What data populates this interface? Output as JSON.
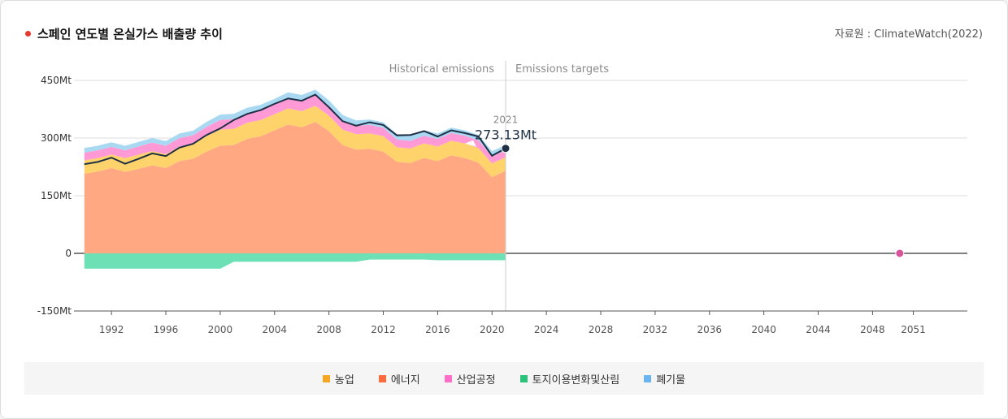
{
  "header": {
    "title": "스페인 연도별 온실가스 배출량 추이",
    "source": "자료원 : ClimateWatch(2022)"
  },
  "chart_data": {
    "type": "area",
    "title": "스페인 연도별 온실가스 배출량 추이",
    "x": [
      1990,
      1991,
      1992,
      1993,
      1994,
      1995,
      1996,
      1997,
      1998,
      1999,
      2000,
      2001,
      2002,
      2003,
      2004,
      2005,
      2006,
      2007,
      2008,
      2009,
      2010,
      2011,
      2012,
      2013,
      2014,
      2015,
      2016,
      2017,
      2018,
      2019,
      2020,
      2021
    ],
    "ylim": [
      -150,
      450
    ],
    "xlim": [
      1989,
      2053
    ],
    "y_ticks": [
      {
        "value": 450,
        "label": "450Mt"
      },
      {
        "value": 300,
        "label": "300Mt"
      },
      {
        "value": 150,
        "label": "150Mt"
      },
      {
        "value": 0,
        "label": "0"
      },
      {
        "value": -150,
        "label": "-150Mt"
      }
    ],
    "x_ticks": [
      1992,
      1996,
      2000,
      2004,
      2008,
      2012,
      2016,
      2020,
      2024,
      2028,
      2032,
      2036,
      2040,
      2044,
      2048,
      2051
    ],
    "series": [
      {
        "name": "에너지",
        "color": "#ffa882",
        "values": [
          207,
          213,
          222,
          212,
          220,
          229,
          222,
          240,
          246,
          265,
          280,
          282,
          298,
          305,
          320,
          335,
          328,
          342,
          318,
          282,
          270,
          272,
          265,
          238,
          235,
          248,
          240,
          255,
          248,
          236,
          198,
          215
        ]
      },
      {
        "name": "농업",
        "color": "#ffd36b",
        "values": [
          35,
          35,
          35,
          36,
          37,
          37,
          36,
          38,
          38,
          40,
          42,
          42,
          42,
          42,
          42,
          42,
          42,
          42,
          40,
          40,
          40,
          40,
          40,
          38,
          38,
          38,
          38,
          38,
          38,
          38,
          36,
          35
        ]
      },
      {
        "name": "산업공정",
        "color": "#ff9ad6",
        "values": [
          20,
          20,
          20,
          20,
          21,
          22,
          22,
          22,
          23,
          24,
          25,
          25,
          25,
          26,
          26,
          28,
          28,
          28,
          26,
          24,
          22,
          22,
          22,
          20,
          20,
          20,
          20,
          20,
          20,
          20,
          18,
          18
        ]
      },
      {
        "name": "폐기물",
        "color": "#a8d8f2",
        "values": [
          12,
          12,
          12,
          12,
          12,
          12,
          12,
          12,
          12,
          13,
          14,
          14,
          14,
          14,
          14,
          14,
          14,
          14,
          14,
          14,
          14,
          14,
          14,
          14,
          14,
          14,
          14,
          14,
          14,
          14,
          14,
          14
        ]
      },
      {
        "name": "토지이용변화및산림",
        "color": "#6ee0b5",
        "values": [
          -40,
          -40,
          -40,
          -40,
          -40,
          -40,
          -40,
          -40,
          -40,
          -40,
          -40,
          -22,
          -22,
          -22,
          -22,
          -22,
          -22,
          -22,
          -22,
          -22,
          -22,
          -16,
          -16,
          -16,
          -16,
          -16,
          -18,
          -18,
          -18,
          -18,
          -18,
          -18
        ]
      }
    ],
    "net_line": {
      "color": "#1e3044",
      "values": [
        232,
        238,
        249,
        233,
        246,
        260,
        253,
        275,
        285,
        308,
        325,
        347,
        363,
        373,
        389,
        403,
        397,
        413,
        380,
        344,
        332,
        341,
        334,
        307,
        308,
        318,
        304,
        320,
        313,
        304,
        254,
        273.13
      ]
    },
    "annotation_labels": {
      "historical": "Historical emissions",
      "targets": "Emissions targets"
    },
    "tooltip": {
      "year": "2021",
      "value_label": "273.13Mt",
      "x": 2021,
      "y": 273.13
    },
    "target_point": {
      "x": 2050,
      "y": 0,
      "color": "#d6559a"
    },
    "legend": [
      {
        "name": "농업",
        "color": "#f5a623"
      },
      {
        "name": "에너지",
        "color": "#ff6b3d"
      },
      {
        "name": "산업공정",
        "color": "#ff6ec7"
      },
      {
        "name": "토지이용변화및산림",
        "color": "#2bc27a"
      },
      {
        "name": "폐기물",
        "color": "#6ab4f0"
      }
    ]
  }
}
